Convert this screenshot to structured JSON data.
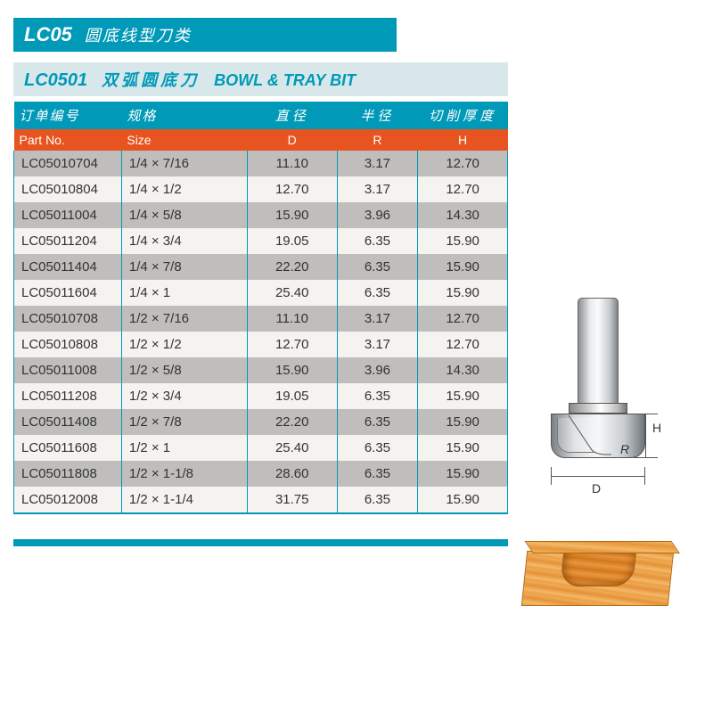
{
  "category": {
    "code": "LC05",
    "name_cn": "圆底线型刀类"
  },
  "product": {
    "code": "LC0501",
    "name_cn": "双弧圆底刀",
    "name_en": "BOWL & TRAY BIT"
  },
  "headers_cn": {
    "part": "订单编号",
    "size": "规格",
    "d": "直径",
    "r": "半径",
    "h": "切削厚度"
  },
  "headers_en": {
    "part": "Part No.",
    "size": "Size",
    "d": "D",
    "r": "R",
    "h": "H"
  },
  "dim_labels": {
    "d": "D",
    "r": "R",
    "h": "H"
  },
  "rows": [
    {
      "part": "LC05010704",
      "size": "1/4 × 7/16",
      "d": "11.10",
      "r": "3.17",
      "h": "12.70"
    },
    {
      "part": "LC05010804",
      "size": "1/4 × 1/2",
      "d": "12.70",
      "r": "3.17",
      "h": "12.70"
    },
    {
      "part": "LC05011004",
      "size": "1/4 × 5/8",
      "d": "15.90",
      "r": "3.96",
      "h": "14.30"
    },
    {
      "part": "LC05011204",
      "size": "1/4 × 3/4",
      "d": "19.05",
      "r": "6.35",
      "h": "15.90"
    },
    {
      "part": "LC05011404",
      "size": "1/4 × 7/8",
      "d": "22.20",
      "r": "6.35",
      "h": "15.90"
    },
    {
      "part": "LC05011604",
      "size": "1/4 × 1",
      "d": "25.40",
      "r": "6.35",
      "h": "15.90"
    },
    {
      "part": "LC05010708",
      "size": "1/2 × 7/16",
      "d": "11.10",
      "r": "3.17",
      "h": "12.70"
    },
    {
      "part": "LC05010808",
      "size": "1/2 × 1/2",
      "d": "12.70",
      "r": "3.17",
      "h": "12.70"
    },
    {
      "part": "LC05011008",
      "size": "1/2 × 5/8",
      "d": "15.90",
      "r": "3.96",
      "h": "14.30"
    },
    {
      "part": "LC05011208",
      "size": "1/2 × 3/4",
      "d": "19.05",
      "r": "6.35",
      "h": "15.90"
    },
    {
      "part": "LC05011408",
      "size": "1/2 × 7/8",
      "d": "22.20",
      "r": "6.35",
      "h": "15.90"
    },
    {
      "part": "LC05011608",
      "size": "1/2 × 1",
      "d": "25.40",
      "r": "6.35",
      "h": "15.90"
    },
    {
      "part": "LC05011808",
      "size": "1/2 × 1-1/8",
      "d": "28.60",
      "r": "6.35",
      "h": "15.90"
    },
    {
      "part": "LC05012008",
      "size": "1/2 × 1-1/4",
      "d": "31.75",
      "r": "6.35",
      "h": "15.90"
    }
  ],
  "colors": {
    "teal": "#0099b8",
    "orange": "#e8541f",
    "row_odd": "#bfbebc",
    "row_even": "#f5f3f0",
    "wood": "#e89a3e"
  }
}
